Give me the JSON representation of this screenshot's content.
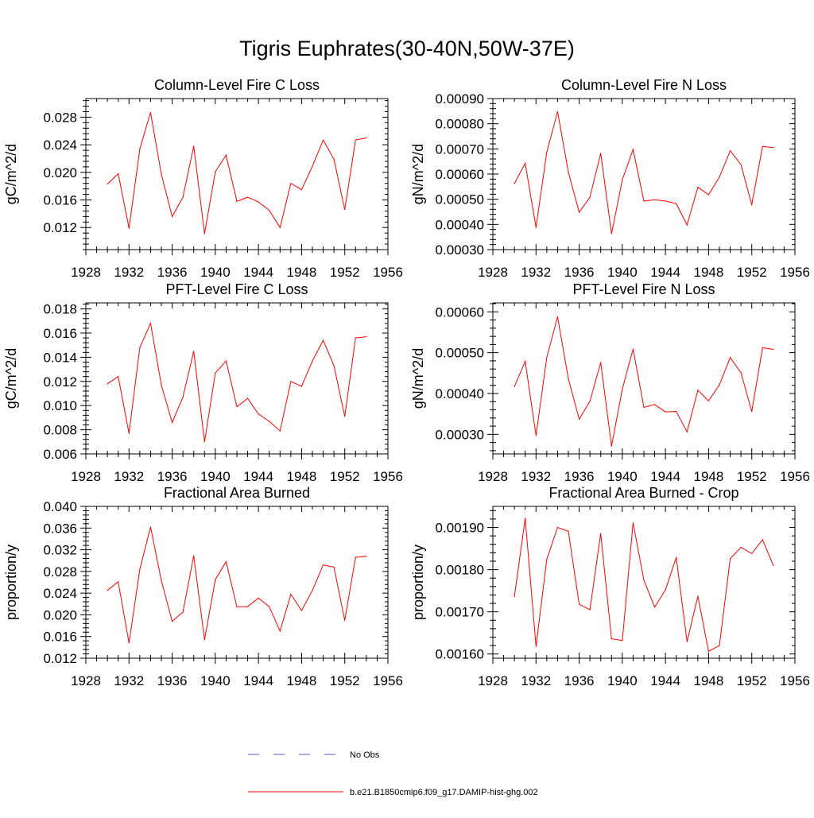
{
  "figure": {
    "title": "Tigris Euphrates(30-40N,50W-37E)",
    "line_color": "#ff0000",
    "legend": {
      "items": [
        {
          "label": "No Obs",
          "style": "dashed",
          "color": "#5a5ad2"
        },
        {
          "label": "b.e21.B1850cmip6.f09_g17.DAMIP-hist-ghg.002",
          "style": "solid",
          "color": "#ff0000"
        }
      ]
    }
  },
  "chart_data": [
    {
      "type": "line",
      "title": "Column-Level Fire C Loss",
      "ylabel": "gC/m^2/d",
      "xlabel": "",
      "xlim": [
        1928,
        1956
      ],
      "ylim": [
        0.0088,
        0.0307
      ],
      "xticks": [
        1928,
        1932,
        1936,
        1940,
        1944,
        1948,
        1952,
        1956
      ],
      "xtick_labels": [
        "1928",
        "1932",
        "1936",
        "1940",
        "1944",
        "1948",
        "1952",
        "1956"
      ],
      "yticks": [
        0.012,
        0.016,
        0.02,
        0.024,
        0.028
      ],
      "ytick_labels": [
        "0.012",
        "0.016",
        "0.020",
        "0.024",
        "0.028"
      ],
      "x": [
        1930,
        1931,
        1932,
        1933,
        1934,
        1935,
        1936,
        1937,
        1938,
        1939,
        1940,
        1941,
        1942,
        1943,
        1944,
        1945,
        1946,
        1947,
        1948,
        1949,
        1950,
        1951,
        1952,
        1953,
        1954
      ],
      "series": [
        {
          "name": "b.e21.B1850cmip6.f09_g17.DAMIP-hist-ghg.002",
          "values": [
            0.0183,
            0.0198,
            0.0119,
            0.0234,
            0.0287,
            0.0197,
            0.0136,
            0.0164,
            0.0238,
            0.0111,
            0.0201,
            0.0225,
            0.0158,
            0.0164,
            0.0157,
            0.0145,
            0.012,
            0.0184,
            0.0175,
            0.0209,
            0.0247,
            0.0219,
            0.0146,
            0.0247,
            0.025
          ]
        }
      ]
    },
    {
      "type": "line",
      "title": "Column-Level Fire N Loss",
      "ylabel": "gN/m^2/d",
      "xlabel": "",
      "xlim": [
        1928,
        1956
      ],
      "ylim": [
        0.0003,
        0.0009
      ],
      "xticks": [
        1928,
        1932,
        1936,
        1940,
        1944,
        1948,
        1952,
        1956
      ],
      "xtick_labels": [
        "1928",
        "1932",
        "1936",
        "1940",
        "1944",
        "1948",
        "1952",
        "1956"
      ],
      "yticks": [
        0.0003,
        0.0004,
        0.0005,
        0.0006,
        0.0007,
        0.0008,
        0.0009
      ],
      "ytick_labels": [
        "0.00030",
        "0.00040",
        "0.00050",
        "0.00060",
        "0.00070",
        "0.00080",
        "0.00090"
      ],
      "x": [
        1930,
        1931,
        1932,
        1933,
        1934,
        1935,
        1936,
        1937,
        1938,
        1939,
        1940,
        1941,
        1942,
        1943,
        1944,
        1945,
        1946,
        1947,
        1948,
        1949,
        1950,
        1951,
        1952,
        1953,
        1954
      ],
      "series": [
        {
          "name": "b.e21.B1850cmip6.f09_g17.DAMIP-hist-ghg.002",
          "values": [
            0.000562,
            0.000643,
            0.000388,
            0.000688,
            0.000848,
            0.000608,
            0.000448,
            0.000508,
            0.000683,
            0.000363,
            0.000578,
            0.000698,
            0.000493,
            0.000498,
            0.000493,
            0.000483,
            0.000398,
            0.000548,
            0.000518,
            0.000588,
            0.000693,
            0.000638,
            0.000478,
            0.00071,
            0.000705
          ]
        }
      ]
    },
    {
      "type": "line",
      "title": "PFT-Level Fire C Loss",
      "ylabel": "gC/m^2/d",
      "xlabel": "",
      "xlim": [
        1928,
        1956
      ],
      "ylim": [
        0.006,
        0.0185
      ],
      "xticks": [
        1928,
        1932,
        1936,
        1940,
        1944,
        1948,
        1952,
        1956
      ],
      "xtick_labels": [
        "1928",
        "1932",
        "1936",
        "1940",
        "1944",
        "1948",
        "1952",
        "1956"
      ],
      "yticks": [
        0.006,
        0.008,
        0.01,
        0.012,
        0.014,
        0.016,
        0.018
      ],
      "ytick_labels": [
        "0.006",
        "0.008",
        "0.010",
        "0.012",
        "0.014",
        "0.016",
        "0.018"
      ],
      "x": [
        1930,
        1931,
        1932,
        1933,
        1934,
        1935,
        1936,
        1937,
        1938,
        1939,
        1940,
        1941,
        1942,
        1943,
        1944,
        1945,
        1946,
        1947,
        1948,
        1949,
        1950,
        1951,
        1952,
        1953,
        1954
      ],
      "series": [
        {
          "name": "b.e21.B1850cmip6.f09_g17.DAMIP-hist-ghg.002",
          "values": [
            0.0118,
            0.0124,
            0.0077,
            0.0148,
            0.0168,
            0.0117,
            0.0086,
            0.0107,
            0.0145,
            0.007,
            0.0127,
            0.0137,
            0.0099,
            0.0106,
            0.0093,
            0.0087,
            0.0079,
            0.012,
            0.0116,
            0.0137,
            0.0154,
            0.0133,
            0.0091,
            0.0156,
            0.0157
          ]
        }
      ]
    },
    {
      "type": "line",
      "title": "PFT-Level Fire N Loss",
      "ylabel": "gN/m^2/d",
      "xlabel": "",
      "xlim": [
        1928,
        1956
      ],
      "ylim": [
        0.000252,
        0.000622
      ],
      "xticks": [
        1928,
        1932,
        1936,
        1940,
        1944,
        1948,
        1952,
        1956
      ],
      "xtick_labels": [
        "1928",
        "1932",
        "1936",
        "1940",
        "1944",
        "1948",
        "1952",
        "1956"
      ],
      "yticks": [
        0.0003,
        0.0004,
        0.0005,
        0.0006
      ],
      "ytick_labels": [
        "0.00030",
        "0.00040",
        "0.00050",
        "0.00060"
      ],
      "x": [
        1930,
        1931,
        1932,
        1933,
        1934,
        1935,
        1936,
        1937,
        1938,
        1939,
        1940,
        1941,
        1942,
        1943,
        1944,
        1945,
        1946,
        1947,
        1948,
        1949,
        1950,
        1951,
        1952,
        1953,
        1954
      ],
      "series": [
        {
          "name": "b.e21.B1850cmip6.f09_g17.DAMIP-hist-ghg.002",
          "values": [
            0.000417,
            0.000479,
            0.000297,
            0.000489,
            0.000588,
            0.000436,
            0.000337,
            0.000381,
            0.000476,
            0.000271,
            0.000411,
            0.000509,
            0.000366,
            0.000373,
            0.000355,
            0.000356,
            0.000306,
            0.000408,
            0.000382,
            0.000421,
            0.000488,
            0.000451,
            0.000356,
            0.000512,
            0.000508
          ]
        }
      ]
    },
    {
      "type": "line",
      "title": "Fractional Area Burned",
      "ylabel": "proportion/y",
      "xlabel": "",
      "xlim": [
        1928,
        1956
      ],
      "ylim": [
        0.012,
        0.04
      ],
      "xticks": [
        1928,
        1932,
        1936,
        1940,
        1944,
        1948,
        1952,
        1956
      ],
      "xtick_labels": [
        "1928",
        "1932",
        "1936",
        "1940",
        "1944",
        "1948",
        "1952",
        "1956"
      ],
      "yticks": [
        0.012,
        0.016,
        0.02,
        0.024,
        0.028,
        0.032,
        0.036,
        0.04
      ],
      "ytick_labels": [
        "0.012",
        "0.016",
        "0.020",
        "0.024",
        "0.028",
        "0.032",
        "0.036",
        "0.040"
      ],
      "x": [
        1930,
        1931,
        1932,
        1933,
        1934,
        1935,
        1936,
        1937,
        1938,
        1939,
        1940,
        1941,
        1942,
        1943,
        1944,
        1945,
        1946,
        1947,
        1948,
        1949,
        1950,
        1951,
        1952,
        1953,
        1954
      ],
      "series": [
        {
          "name": "b.e21.B1850cmip6.f09_g17.DAMIP-hist-ghg.002",
          "values": [
            0.0245,
            0.0261,
            0.0148,
            0.0284,
            0.0362,
            0.0263,
            0.0188,
            0.0205,
            0.0309,
            0.0154,
            0.0265,
            0.0298,
            0.0215,
            0.0215,
            0.0231,
            0.0215,
            0.017,
            0.0238,
            0.0208,
            0.0245,
            0.0292,
            0.0288,
            0.019,
            0.0306,
            0.0308
          ]
        }
      ]
    },
    {
      "type": "line",
      "title": "Fractional Area Burned - Crop",
      "ylabel": "proportion/y",
      "xlabel": "",
      "xlim": [
        1928,
        1956
      ],
      "ylim": [
        0.00159,
        0.00195
      ],
      "xticks": [
        1928,
        1932,
        1936,
        1940,
        1944,
        1948,
        1952,
        1956
      ],
      "xtick_labels": [
        "1928",
        "1932",
        "1936",
        "1940",
        "1944",
        "1948",
        "1952",
        "1956"
      ],
      "yticks": [
        0.0016,
        0.0017,
        0.0018,
        0.0019
      ],
      "ytick_labels": [
        "0.00160",
        "0.00170",
        "0.00180",
        "0.00190"
      ],
      "x": [
        1930,
        1931,
        1932,
        1933,
        1934,
        1935,
        1936,
        1937,
        1938,
        1939,
        1940,
        1941,
        1942,
        1943,
        1944,
        1945,
        1946,
        1947,
        1948,
        1949,
        1950,
        1951,
        1952,
        1953,
        1954
      ],
      "series": [
        {
          "name": "b.e21.B1850cmip6.f09_g17.DAMIP-hist-ghg.002",
          "values": [
            0.001736,
            0.001922,
            0.001618,
            0.001825,
            0.0019,
            0.001891,
            0.001718,
            0.001705,
            0.001886,
            0.001636,
            0.001632,
            0.001911,
            0.001775,
            0.001711,
            0.001752,
            0.001829,
            0.001629,
            0.001737,
            0.001606,
            0.00162,
            0.001826,
            0.001853,
            0.001838,
            0.001871,
            0.00181
          ]
        }
      ]
    }
  ]
}
